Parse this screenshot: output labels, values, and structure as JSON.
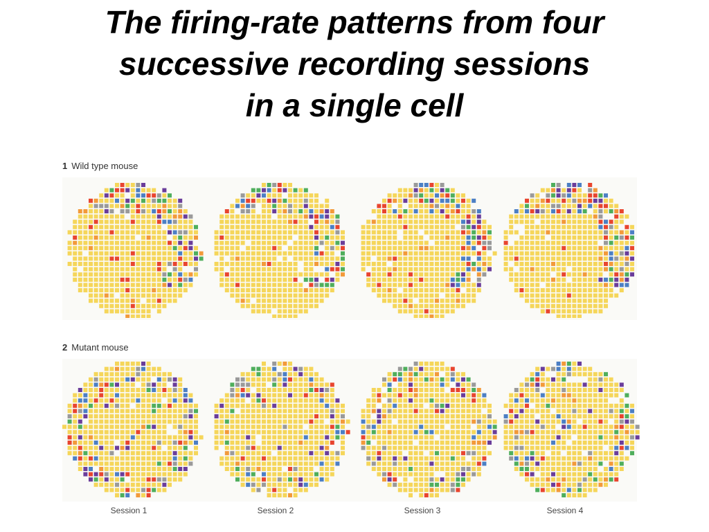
{
  "title": {
    "line1": "The firing-rate patterns from four",
    "line2": "successive recording sessions",
    "line3": "in a single cell"
  },
  "panels": [
    {
      "number": "1",
      "label": "Wild type mouse"
    },
    {
      "number": "2",
      "label": "Mutant mouse"
    }
  ],
  "sessions": [
    "Session 1",
    "Session 2",
    "Session 3",
    "Session 4"
  ],
  "colors": {
    "low": "#f5d65a",
    "levels": [
      "#f29a3a",
      "#e8452f",
      "#4fae5c",
      "#4c7fc4",
      "#6a3d9a",
      "#9a9a9a"
    ]
  }
}
